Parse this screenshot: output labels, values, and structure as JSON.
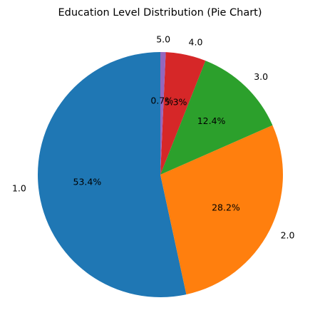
{
  "chart_data": {
    "type": "pie",
    "title": "Education Level Distribution (Pie Chart)",
    "categories": [
      "1.0",
      "2.0",
      "3.0",
      "4.0",
      "5.0"
    ],
    "values": [
      53.4,
      28.2,
      12.4,
      5.3,
      0.7
    ],
    "value_labels": [
      "53.4%",
      "28.2%",
      "12.4%",
      "5.3%",
      "0.7%"
    ],
    "colors": [
      "#1f77b4",
      "#ff7f0e",
      "#2ca02c",
      "#d62728",
      "#9467bd"
    ],
    "start_angle_deg": 90,
    "direction": "counterclockwise",
    "legend": "none"
  }
}
